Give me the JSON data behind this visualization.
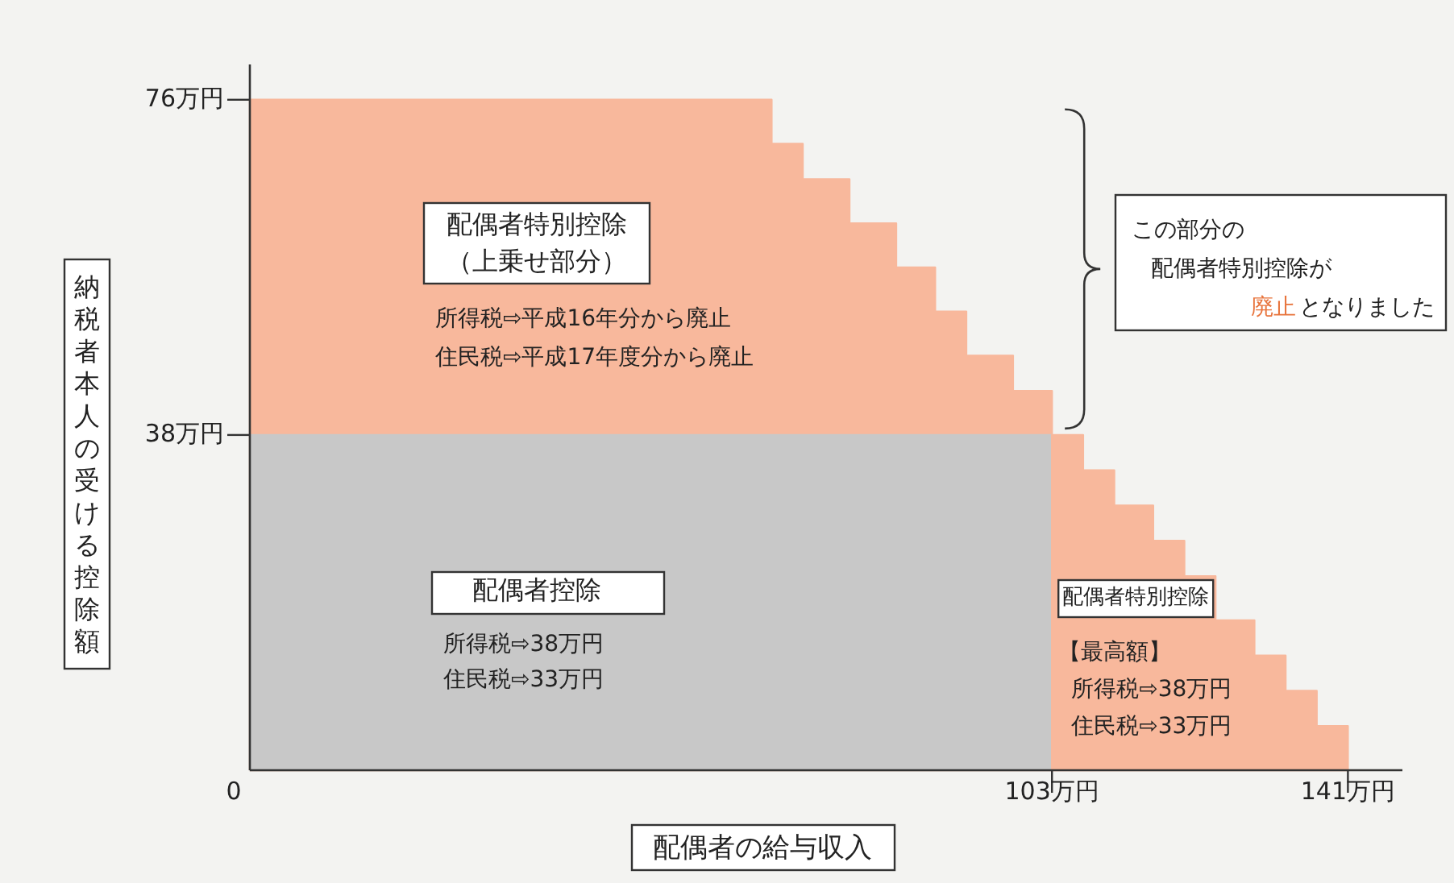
{
  "chart_data": {
    "type": "area",
    "xlabel": "配偶者の給与収入",
    "ylabel": "納税者本人の受ける控除額",
    "xlim": [
      0,
      148
    ],
    "ylim": [
      0,
      80
    ],
    "xticks": [
      {
        "value": 0,
        "label": "0"
      },
      {
        "value": 103,
        "label": "103万円"
      },
      {
        "value": 141,
        "label": "141万円"
      }
    ],
    "yticks": [
      {
        "value": 38,
        "label": "38万円"
      },
      {
        "value": 76,
        "label": "76万円"
      }
    ],
    "series": [
      {
        "color": "#f8b89c",
        "x": [
          0,
          67,
          71,
          77,
          83,
          88,
          92,
          98,
          103
        ],
        "values": [
          76,
          71,
          67,
          62,
          57,
          52,
          47,
          43,
          43
        ]
      },
      {
        "color": "#c8c8c8",
        "x": [
          0,
          103
        ],
        "values": [
          38,
          38
        ]
      },
      {
        "color": "#f8b89c",
        "x": [
          103,
          107,
          111,
          116,
          120,
          124,
          129,
          133,
          137,
          141
        ],
        "values": [
          38,
          34,
          30,
          26,
          22,
          17,
          13,
          9,
          5,
          5
        ]
      }
    ],
    "annotations": [
      "配偶者特別控除",
      "（上乗せ部分）",
      "所得税⇨平成16年分から廃止",
      "住民税⇨平成17年度分から廃止",
      "配偶者控除",
      "所得税⇨38万円",
      "住民税⇨33万円",
      "配偶者特別控除",
      "【最高額】",
      "所得税⇨38万円",
      "住民税⇨33万円",
      "この部分の",
      "配偶者特別控除が",
      "廃止",
      "となりました"
    ]
  }
}
